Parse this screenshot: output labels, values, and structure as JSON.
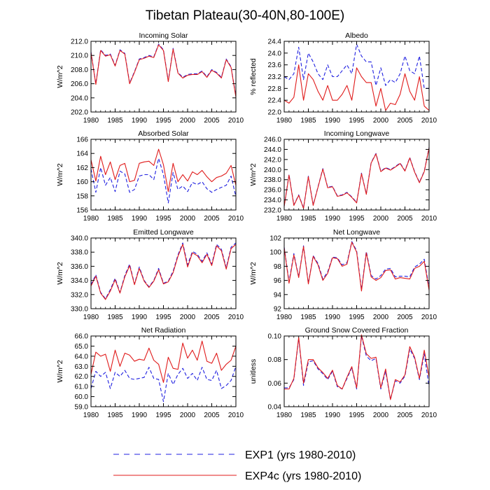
{
  "figure": {
    "title": "Tibetan Plateau(30-40N,80-100E)"
  },
  "legend": {
    "items": [
      {
        "label": "EXP1 (yrs 1980-2010)",
        "color": "#1f1fe0",
        "dash": true
      },
      {
        "label": "EXP4c (yrs 1980-2010)",
        "color": "#e01b1b",
        "dash": false
      }
    ]
  },
  "chart_data": [
    {
      "type": "line",
      "title": "Incoming Solar",
      "ylabel": "W/m^2",
      "xlim": [
        1980,
        2010
      ],
      "ylim": [
        202,
        212
      ],
      "yticks": [
        "202.0",
        "204.0",
        "206.0",
        "208.0",
        "210.0",
        "212.0"
      ],
      "xticks": [
        "1980",
        "1985",
        "1990",
        "1995",
        "2000",
        "2005",
        "2010"
      ],
      "x": [
        1980,
        1981,
        1982,
        1983,
        1984,
        1985,
        1986,
        1987,
        1988,
        1989,
        1990,
        1991,
        1992,
        1993,
        1994,
        1995,
        1996,
        1997,
        1998,
        1999,
        2000,
        2001,
        2002,
        2003,
        2004,
        2005,
        2006,
        2007,
        2008,
        2009,
        2010
      ],
      "series": [
        {
          "name": "EXP1 (yrs 1980-2010)",
          "values": [
            210.5,
            206.0,
            210.8,
            210.0,
            210.2,
            208.6,
            210.8,
            210.3,
            206.1,
            207.7,
            209.5,
            209.7,
            210.0,
            209.8,
            211.6,
            210.8,
            206.4,
            211.0,
            207.6,
            206.9,
            207.3,
            207.4,
            207.4,
            207.8,
            207.0,
            208.0,
            207.6,
            206.9,
            209.5,
            208.4,
            204.2
          ]
        },
        {
          "name": "EXP4c (yrs 1980-2010)",
          "values": [
            210.4,
            205.9,
            210.7,
            209.9,
            210.1,
            208.5,
            210.7,
            210.2,
            206.0,
            207.6,
            209.4,
            209.6,
            209.9,
            209.7,
            211.5,
            210.7,
            206.3,
            210.9,
            207.5,
            206.8,
            207.2,
            207.3,
            207.3,
            207.7,
            206.9,
            207.9,
            207.5,
            206.8,
            209.4,
            208.3,
            204.1
          ]
        }
      ]
    },
    {
      "type": "line",
      "title": "Albedo",
      "ylabel": "% reflected",
      "xlim": [
        1980,
        2010
      ],
      "ylim": [
        22.0,
        24.4
      ],
      "yticks": [
        "22.0",
        "22.4",
        "22.8",
        "23.2",
        "23.6",
        "24.0",
        "24.4"
      ],
      "xticks": [
        "1980",
        "1985",
        "1990",
        "1995",
        "2000",
        "2005",
        "2010"
      ],
      "x": [
        1980,
        1981,
        1982,
        1983,
        1984,
        1985,
        1986,
        1987,
        1988,
        1989,
        1990,
        1991,
        1992,
        1993,
        1994,
        1995,
        1996,
        1997,
        1998,
        1999,
        2000,
        2001,
        2002,
        2003,
        2004,
        2005,
        2006,
        2007,
        2008,
        2009,
        2010
      ],
      "series": [
        {
          "name": "EXP1 (yrs 1980-2010)",
          "values": [
            23.2,
            23.1,
            23.3,
            24.2,
            23.1,
            24.0,
            23.7,
            23.3,
            23.1,
            23.6,
            23.2,
            23.2,
            23.4,
            23.6,
            23.3,
            24.3,
            23.9,
            23.7,
            23.7,
            22.9,
            23.5,
            22.9,
            23.1,
            23.0,
            23.3,
            23.9,
            23.4,
            23.3,
            23.9,
            22.8,
            22.8
          ]
        },
        {
          "name": "EXP4c (yrs 1980-2010)",
          "values": [
            22.4,
            22.3,
            22.5,
            23.6,
            22.4,
            23.3,
            23.1,
            22.7,
            22.4,
            22.9,
            22.4,
            22.4,
            22.6,
            22.9,
            22.4,
            23.5,
            23.2,
            23.0,
            23.0,
            22.2,
            22.8,
            22.05,
            22.3,
            22.25,
            22.6,
            23.3,
            22.7,
            22.4,
            23.2,
            22.2,
            22.05
          ]
        }
      ]
    },
    {
      "type": "line",
      "title": "Absorbed Solar",
      "ylabel": "W/m^2",
      "xlim": [
        1980,
        2010
      ],
      "ylim": [
        156,
        166
      ],
      "yticks": [
        "156",
        "158",
        "160",
        "162",
        "164",
        "166"
      ],
      "xticks": [
        "1980",
        "1985",
        "1990",
        "1995",
        "2000",
        "2005",
        "2010"
      ],
      "x": [
        1980,
        1981,
        1982,
        1983,
        1984,
        1985,
        1986,
        1987,
        1988,
        1989,
        1990,
        1991,
        1992,
        1993,
        1994,
        1995,
        1996,
        1997,
        1998,
        1999,
        2000,
        2001,
        2002,
        2003,
        2004,
        2005,
        2006,
        2007,
        2008,
        2009,
        2010
      ],
      "series": [
        {
          "name": "EXP1 (yrs 1980-2010)",
          "values": [
            161.8,
            158.5,
            162.0,
            159.5,
            160.6,
            158.6,
            161.5,
            161.1,
            158.5,
            158.9,
            160.8,
            161.0,
            161.0,
            160.3,
            163.3,
            161.0,
            157.0,
            161.3,
            158.9,
            159.4,
            158.6,
            159.9,
            159.6,
            160.0,
            159.0,
            158.5,
            158.9,
            159.2,
            159.5,
            160.8,
            157.9
          ]
        },
        {
          "name": "EXP4c (yrs 1980-2010)",
          "values": [
            163.1,
            160.1,
            163.6,
            161.0,
            162.8,
            160.3,
            162.3,
            162.6,
            160.0,
            160.2,
            162.6,
            162.8,
            162.9,
            162.3,
            164.6,
            162.4,
            158.6,
            162.6,
            160.0,
            161.0,
            160.1,
            161.4,
            161.0,
            161.6,
            160.7,
            160.0,
            160.6,
            160.8,
            161.2,
            162.3,
            159.5
          ]
        }
      ]
    },
    {
      "type": "line",
      "title": "Incoming Longwave",
      "ylabel": "W/m^2",
      "xlim": [
        1980,
        2010
      ],
      "ylim": [
        232,
        246
      ],
      "yticks": [
        "232.0",
        "234.0",
        "236.0",
        "238.0",
        "240.0",
        "242.0",
        "244.0",
        "246.0"
      ],
      "xticks": [
        "1980",
        "1985",
        "1990",
        "1995",
        "2000",
        "2005",
        "2010"
      ],
      "x": [
        1980,
        1981,
        1982,
        1983,
        1984,
        1985,
        1986,
        1987,
        1988,
        1989,
        1990,
        1991,
        1992,
        1993,
        1994,
        1995,
        1996,
        1997,
        1998,
        1999,
        2000,
        2001,
        2002,
        2003,
        2004,
        2005,
        2006,
        2007,
        2008,
        2009,
        2010
      ],
      "series": [
        {
          "name": "EXP1 (yrs 1980-2010)",
          "values": [
            232.8,
            239.0,
            233.0,
            235.0,
            232.4,
            238.7,
            233.0,
            236.6,
            240.2,
            236.5,
            236.7,
            234.8,
            235.0,
            235.5,
            234.6,
            233.5,
            239.3,
            235.2,
            241.4,
            243.2,
            239.7,
            240.4,
            240.0,
            240.6,
            241.3,
            239.8,
            242.4,
            239.6,
            237.5,
            239.7,
            244.4
          ]
        },
        {
          "name": "EXP4c (yrs 1980-2010)",
          "values": [
            232.7,
            238.9,
            232.9,
            234.9,
            232.3,
            238.6,
            232.9,
            236.5,
            240.1,
            236.4,
            236.6,
            234.7,
            234.9,
            235.4,
            234.5,
            233.4,
            239.2,
            235.1,
            241.3,
            243.1,
            239.6,
            240.3,
            239.9,
            240.5,
            241.2,
            239.7,
            242.3,
            239.5,
            237.4,
            239.6,
            244.3
          ]
        }
      ]
    },
    {
      "type": "line",
      "title": "Emitted Longwave",
      "ylabel": "W/m^2",
      "xlim": [
        1980,
        2010
      ],
      "ylim": [
        330,
        340
      ],
      "yticks": [
        "330.0",
        "332.0",
        "334.0",
        "336.0",
        "338.0",
        "340.0"
      ],
      "xticks": [
        "1980",
        "1985",
        "1990",
        "1995",
        "2000",
        "2005",
        "2010"
      ],
      "x": [
        1980,
        1981,
        1982,
        1983,
        1984,
        1985,
        1986,
        1987,
        1988,
        1989,
        1990,
        1991,
        1992,
        1993,
        1994,
        1995,
        1996,
        1997,
        1998,
        1999,
        2000,
        2001,
        2002,
        2003,
        2004,
        2005,
        2006,
        2007,
        2008,
        2009,
        2010
      ],
      "series": [
        {
          "name": "EXP1 (yrs 1980-2010)",
          "values": [
            333.4,
            334.8,
            332.3,
            331.4,
            332.7,
            334.3,
            332.3,
            334.7,
            336.3,
            333.5,
            335.9,
            334.0,
            333.1,
            334.0,
            335.7,
            333.6,
            333.9,
            335.3,
            337.6,
            339.3,
            336.2,
            338.1,
            337.7,
            336.7,
            337.9,
            336.3,
            339.1,
            338.4,
            335.8,
            338.7,
            339.3
          ]
        },
        {
          "name": "EXP4c (yrs 1980-2010)",
          "values": [
            333.2,
            334.6,
            332.2,
            331.3,
            332.5,
            334.1,
            332.2,
            334.5,
            336.1,
            333.4,
            335.7,
            333.9,
            333.0,
            333.9,
            335.5,
            333.5,
            333.8,
            335.1,
            337.4,
            339.1,
            335.9,
            337.9,
            337.5,
            336.5,
            337.7,
            336.1,
            338.9,
            338.2,
            335.6,
            338.5,
            339.1
          ]
        }
      ]
    },
    {
      "type": "line",
      "title": "Net Longwave",
      "ylabel": "W/m^2",
      "xlim": [
        1980,
        2010
      ],
      "ylim": [
        92,
        102
      ],
      "yticks": [
        "92",
        "94",
        "96",
        "98",
        "100",
        "102"
      ],
      "xticks": [
        "1980",
        "1985",
        "1990",
        "1995",
        "2000",
        "2005",
        "2010"
      ],
      "x": [
        1980,
        1981,
        1982,
        1983,
        1984,
        1985,
        1986,
        1987,
        1988,
        1989,
        1990,
        1991,
        1992,
        1993,
        1994,
        1995,
        1996,
        1997,
        1998,
        1999,
        2000,
        2001,
        2002,
        2003,
        2004,
        2005,
        2006,
        2007,
        2008,
        2009,
        2010
      ],
      "series": [
        {
          "name": "EXP1 (yrs 1980-2010)",
          "values": [
            100.7,
            95.8,
            99.8,
            96.5,
            100.9,
            95.6,
            99.5,
            98.4,
            96.2,
            97.2,
            99.3,
            99.2,
            98.2,
            98.5,
            101.5,
            100.2,
            94.7,
            100.1,
            96.7,
            96.2,
            96.7,
            97.6,
            97.7,
            96.5,
            96.6,
            96.6,
            96.5,
            97.9,
            98.3,
            99.0,
            94.9
          ]
        },
        {
          "name": "EXP4c (yrs 1980-2010)",
          "values": [
            100.6,
            95.6,
            99.6,
            96.4,
            100.8,
            95.5,
            99.4,
            98.2,
            96.0,
            97.0,
            99.2,
            99.1,
            98.0,
            98.3,
            101.4,
            100.0,
            94.5,
            99.9,
            96.5,
            96.0,
            96.4,
            97.4,
            97.5,
            96.2,
            96.4,
            96.3,
            96.2,
            97.7,
            98.0,
            98.7,
            94.6
          ]
        }
      ]
    },
    {
      "type": "line",
      "title": "Net Radiation",
      "ylabel": "W/m^2",
      "xlim": [
        1980,
        2010
      ],
      "ylim": [
        59,
        66
      ],
      "yticks": [
        "59.0",
        "60.0",
        "61.0",
        "62.0",
        "63.0",
        "64.0",
        "65.0",
        "66.0"
      ],
      "xticks": [
        "1980",
        "1985",
        "1990",
        "1995",
        "2000",
        "2005",
        "2010"
      ],
      "x": [
        1980,
        1981,
        1982,
        1983,
        1984,
        1985,
        1986,
        1987,
        1988,
        1989,
        1990,
        1991,
        1992,
        1993,
        1994,
        1995,
        1996,
        1997,
        1998,
        1999,
        2000,
        2001,
        2002,
        2003,
        2004,
        2005,
        2006,
        2007,
        2008,
        2009,
        2010
      ],
      "series": [
        {
          "name": "EXP1 (yrs 1980-2010)",
          "values": [
            60.8,
            62.5,
            62.0,
            62.4,
            60.8,
            62.4,
            62.0,
            62.6,
            61.8,
            61.7,
            61.8,
            61.9,
            62.9,
            61.8,
            61.7,
            59.5,
            62.3,
            61.2,
            62.2,
            62.8,
            61.8,
            62.3,
            61.6,
            62.9,
            61.7,
            61.6,
            62.6,
            60.8,
            61.1,
            61.6,
            63.0
          ]
        },
        {
          "name": "EXP4c (yrs 1980-2010)",
          "values": [
            62.2,
            64.4,
            64.0,
            64.2,
            62.5,
            64.6,
            63.0,
            64.3,
            64.1,
            63.5,
            63.7,
            63.6,
            64.8,
            63.6,
            63.2,
            61.4,
            63.9,
            62.8,
            62.7,
            65.3,
            63.8,
            64.6,
            63.6,
            65.5,
            63.5,
            63.3,
            64.3,
            62.6,
            63.2,
            63.6,
            65.0
          ]
        }
      ]
    },
    {
      "type": "line",
      "title": "Ground Snow Covered Fraction",
      "ylabel": "unitless",
      "xlim": [
        1980,
        2010
      ],
      "ylim": [
        0.04,
        0.1
      ],
      "yticks": [
        "0.04",
        "0.06",
        "0.08",
        "0.10"
      ],
      "xticks": [
        "1980",
        "1985",
        "1990",
        "1995",
        "2000",
        "2005",
        "2010"
      ],
      "x": [
        1980,
        1981,
        1982,
        1983,
        1984,
        1985,
        1986,
        1987,
        1988,
        1989,
        1990,
        1991,
        1992,
        1993,
        1994,
        1995,
        1996,
        1997,
        1998,
        1999,
        2000,
        2001,
        2002,
        2003,
        2004,
        2005,
        2006,
        2007,
        2008,
        2009,
        2010
      ],
      "series": [
        {
          "name": "EXP1 (yrs 1980-2010)",
          "values": [
            0.056,
            0.056,
            0.063,
            0.098,
            0.058,
            0.078,
            0.079,
            0.072,
            0.068,
            0.063,
            0.07,
            0.057,
            0.055,
            0.064,
            0.073,
            0.055,
            0.1,
            0.083,
            0.079,
            0.081,
            0.055,
            0.07,
            0.046,
            0.062,
            0.06,
            0.066,
            0.089,
            0.081,
            0.063,
            0.085,
            0.057
          ]
        },
        {
          "name": "EXP4c (yrs 1980-2010)",
          "values": [
            0.055,
            0.055,
            0.064,
            0.099,
            0.06,
            0.08,
            0.08,
            0.073,
            0.069,
            0.064,
            0.071,
            0.058,
            0.055,
            0.065,
            0.074,
            0.056,
            0.101,
            0.085,
            0.081,
            0.082,
            0.056,
            0.072,
            0.046,
            0.063,
            0.061,
            0.067,
            0.091,
            0.082,
            0.064,
            0.088,
            0.065
          ]
        }
      ]
    }
  ]
}
